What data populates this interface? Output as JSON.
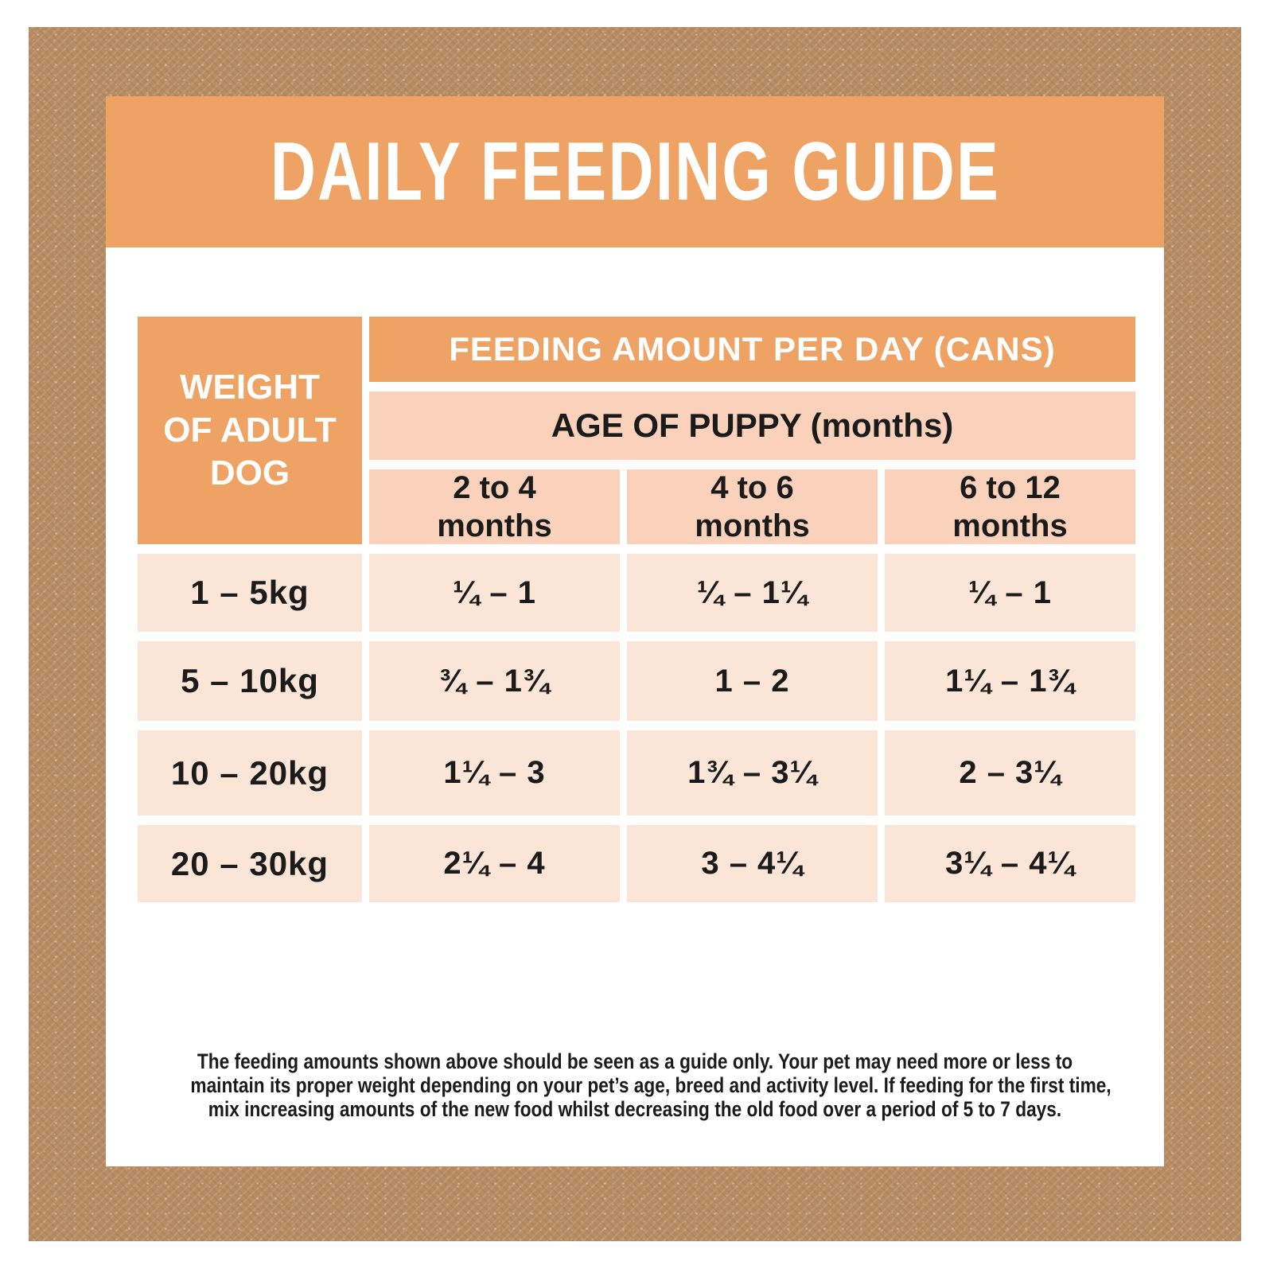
{
  "title": "DAILY FEEDING GUIDE",
  "colors": {
    "orange": "#eea263",
    "peach_header": "#fad2bc",
    "peach_data": "#fbe5d7",
    "brown": "#b68c64",
    "ink": "#1b1b1b"
  },
  "table": {
    "corner_header": "WEIGHT\nOF ADULT\nDOG",
    "top_header": "FEEDING AMOUNT PER DAY (CANS)",
    "sub_header": "AGE OF PUPPY (months)",
    "age_columns": [
      "2 to 4\nmonths",
      "4 to 6\nmonths",
      "6 to 12\nmonths"
    ],
    "rows": [
      {
        "weight": "1 – 5kg",
        "values": [
          "¼ – 1",
          "¼ – 1¼",
          "¼ – 1"
        ]
      },
      {
        "weight": "5 – 10kg",
        "values": [
          "¾ – 1¾",
          "1 – 2",
          "1¼ – 1¾"
        ]
      },
      {
        "weight": "10 – 20kg",
        "values": [
          "1¼ – 3",
          "1¾ – 3¼",
          "2 – 3¼"
        ]
      },
      {
        "weight": "20 – 30kg",
        "values": [
          "2¼ – 4",
          "3 – 4¼",
          "3¼ – 4¼"
        ]
      }
    ]
  },
  "disclaimer": {
    "lines": [
      "The feeding amounts shown above should be seen as a guide only. Your pet may need more or less to",
      "maintain its proper weight depending on your pet’s age, breed and activity level. If feeding for the first time,",
      "mix increasing amounts of the new food whilst decreasing the old food over a period of 5 to 7 days."
    ]
  }
}
